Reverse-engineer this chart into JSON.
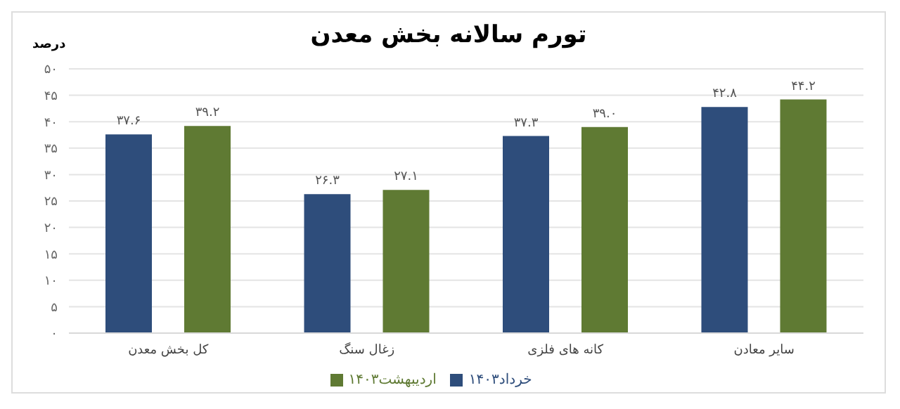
{
  "chart_data": {
    "type": "bar",
    "title": "تورم سالانه بخش معدن",
    "ylabel": "درصد",
    "categories": [
      "کل بخش معدن",
      "زغال سنگ",
      "کانه های فلزی",
      "سایر معادن"
    ],
    "series": [
      {
        "name": "خرداد۱۴۰۳",
        "color": "#2e4d7b",
        "values": [
          37.6,
          26.3,
          37.3,
          42.8
        ],
        "value_labels": [
          "۳۷.۶",
          "۲۶.۳",
          "۳۷.۳",
          "۴۲.۸"
        ]
      },
      {
        "name": "اردیبهشت۱۴۰۳",
        "color": "#5f7a33",
        "values": [
          39.2,
          27.1,
          39.0,
          44.2
        ],
        "value_labels": [
          "۳۹.۲",
          "۲۷.۱",
          "۳۹.۰",
          "۴۴.۲"
        ]
      }
    ],
    "ylim": [
      0,
      50
    ],
    "yticks": [
      {
        "value": 0,
        "label": "۰"
      },
      {
        "value": 5,
        "label": "۵"
      },
      {
        "value": 10,
        "label": "۱۰"
      },
      {
        "value": 15,
        "label": "۱۵"
      },
      {
        "value": 20,
        "label": "۲۰"
      },
      {
        "value": 25,
        "label": "۲۵"
      },
      {
        "value": 30,
        "label": "۳۰"
      },
      {
        "value": 35,
        "label": "۳۵"
      },
      {
        "value": 40,
        "label": "۴۰"
      },
      {
        "value": 45,
        "label": "۴۵"
      },
      {
        "value": 50,
        "label": "۵۰"
      }
    ],
    "grid": "y",
    "legend": "bottom"
  }
}
